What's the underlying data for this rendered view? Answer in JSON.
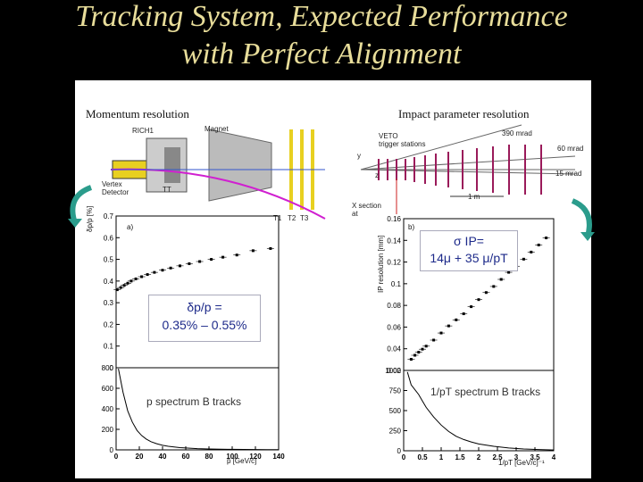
{
  "slide": {
    "title_line1": "Tracking System, Expected Performance",
    "title_line2": "with Perfect Alignment"
  },
  "left": {
    "header": "Momentum resolution",
    "detector_labels": {
      "rich": "RICH1",
      "magnet": "Magnet",
      "vertex": "Vertex",
      "detector": "Detector",
      "tt": "TT",
      "t1": "T1",
      "t2": "T2",
      "t3": "T3"
    },
    "formula_line1": "δp/p =",
    "formula_line2": "0.35% – 0.55%",
    "spectrum_label": "p spectrum B tracks",
    "ylabel": "δp/p [%]",
    "xlabel": "p [GeV/c]",
    "panel_tag": "a)",
    "resolution_yticks": [
      "0.7",
      "0.6",
      "0.5",
      "0.4",
      "0.3",
      "0.2",
      "0.1",
      "0"
    ],
    "spectrum_yticks": [
      "800",
      "600",
      "400",
      "200",
      "0"
    ],
    "xticks": [
      "0",
      "20",
      "40",
      "60",
      "80",
      "100",
      "120",
      "140"
    ]
  },
  "right": {
    "header": "Impact parameter resolution",
    "detector_labels": {
      "veto": "VETO",
      "trigger": "trigger stations",
      "mrad390": "390 mrad",
      "mrad60": "60 mrad",
      "mrad15": "15 mrad",
      "scale": "1 m",
      "xsec": "X section",
      "at": "at",
      "y": "y",
      "z": "z"
    },
    "formula_line1": "σ IP=",
    "formula_line2": "14μ + 35 μ/pT",
    "spectrum_label": "1/pT spectrum B tracks",
    "ylabel": "IP resolution [mm]",
    "xlabel": "1/pT [GeV/c]⁻¹",
    "panel_tag": "b)",
    "resolution_yticks": [
      "0.16",
      "0.14",
      "0.12",
      "0.1",
      "0.08",
      "0.06",
      "0.04",
      "0.02"
    ],
    "spectrum_yticks": [
      "1000",
      "750",
      "500",
      "250",
      "0"
    ],
    "xticks": [
      "0",
      "0.5",
      "1",
      "1.5",
      "2",
      "2.5",
      "3",
      "3.5",
      "4"
    ]
  },
  "chart_data": [
    {
      "type": "scatter",
      "title": "",
      "xlabel": "p [GeV/c]",
      "ylabel": "δp/p [%]",
      "xlim": [
        0,
        140
      ],
      "ylim": [
        0,
        0.7
      ],
      "x": [
        1,
        4,
        7,
        10,
        13,
        17,
        22,
        27,
        33,
        40,
        47,
        55,
        63,
        72,
        82,
        92,
        104,
        118,
        133
      ],
      "y": [
        0.36,
        0.37,
        0.38,
        0.39,
        0.4,
        0.41,
        0.42,
        0.43,
        0.44,
        0.45,
        0.46,
        0.47,
        0.48,
        0.49,
        0.5,
        0.51,
        0.52,
        0.54,
        0.55
      ]
    },
    {
      "type": "bar",
      "title": "",
      "xlabel": "p [GeV/c]",
      "ylabel": "",
      "xlim": [
        0,
        140
      ],
      "ylim": [
        0,
        800
      ],
      "x": [
        2,
        6,
        10,
        14,
        18,
        22,
        26,
        30,
        35,
        40,
        45,
        50,
        55,
        60,
        70,
        80,
        90,
        100,
        110,
        120,
        130,
        140
      ],
      "values": [
        790,
        560,
        380,
        270,
        190,
        140,
        105,
        80,
        60,
        45,
        35,
        28,
        22,
        18,
        12,
        9,
        7,
        5,
        4,
        3,
        2,
        2
      ]
    },
    {
      "type": "scatter",
      "title": "",
      "xlabel": "1/pT [GeV/c]⁻¹",
      "ylabel": "IP resolution [mm]",
      "xlim": [
        0,
        4
      ],
      "ylim": [
        0.01,
        0.16
      ],
      "x": [
        0.2,
        0.3,
        0.4,
        0.5,
        0.6,
        0.8,
        1.0,
        1.2,
        1.4,
        1.6,
        1.8,
        2.0,
        2.2,
        2.4,
        2.6,
        2.8,
        3.0,
        3.2,
        3.4,
        3.6,
        3.8
      ],
      "y": [
        0.021,
        0.025,
        0.028,
        0.031,
        0.034,
        0.04,
        0.047,
        0.054,
        0.06,
        0.066,
        0.073,
        0.08,
        0.087,
        0.093,
        0.1,
        0.107,
        0.113,
        0.12,
        0.127,
        0.134,
        0.141
      ]
    },
    {
      "type": "bar",
      "title": "",
      "xlabel": "1/pT [GeV/c]⁻¹",
      "ylabel": "",
      "xlim": [
        0,
        4
      ],
      "ylim": [
        0,
        1000
      ],
      "x": [
        0.1,
        0.2,
        0.3,
        0.4,
        0.5,
        0.6,
        0.8,
        1.0,
        1.2,
        1.4,
        1.6,
        1.8,
        2.0,
        2.4,
        2.8,
        3.2,
        3.6,
        4.0
      ],
      "values": [
        980,
        820,
        760,
        700,
        620,
        540,
        420,
        320,
        240,
        180,
        140,
        110,
        85,
        55,
        35,
        22,
        15,
        10
      ]
    }
  ]
}
